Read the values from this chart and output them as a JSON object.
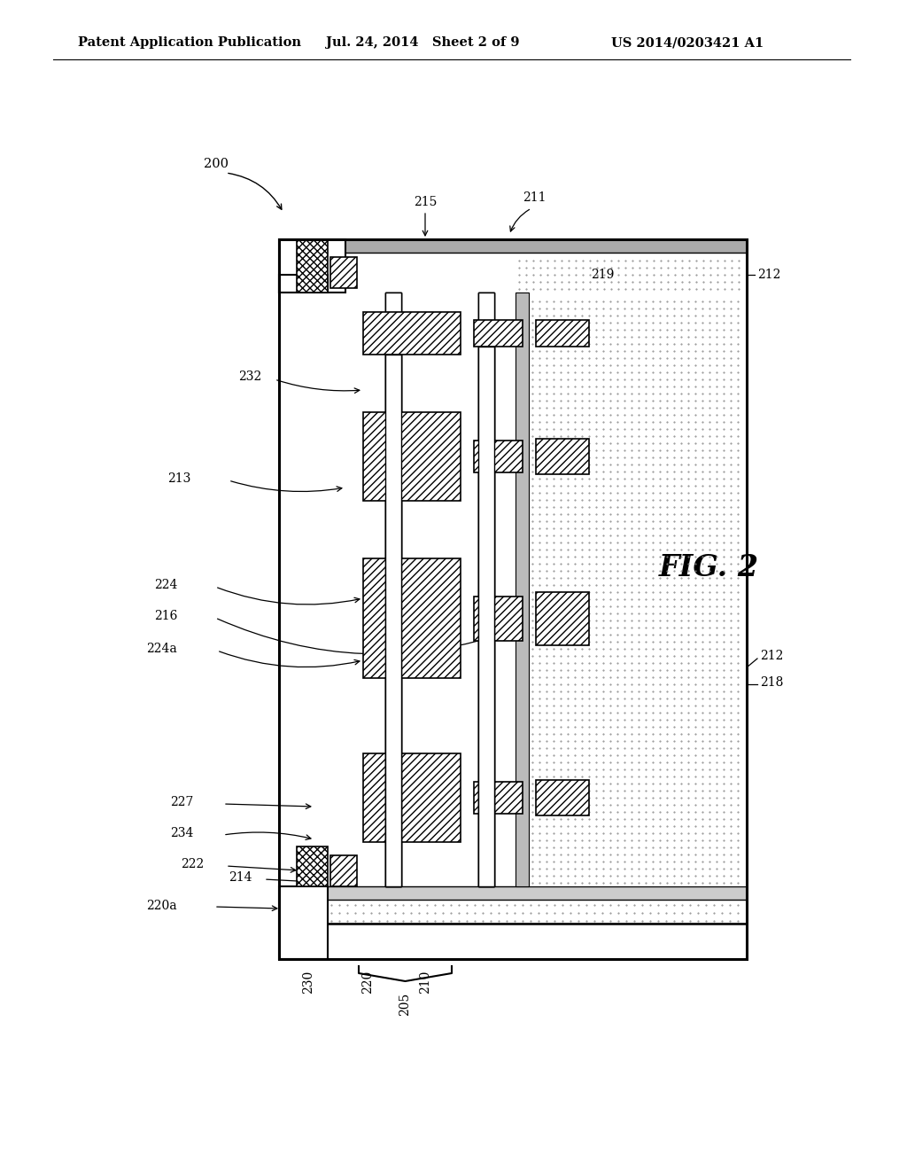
{
  "title_left": "Patent Application Publication",
  "title_mid": "Jul. 24, 2014   Sheet 2 of 9",
  "title_right": "US 2014/0203421 A1",
  "fig_label": "FIG. 2",
  "bg_color": "#ffffff",
  "line_color": "#000000"
}
